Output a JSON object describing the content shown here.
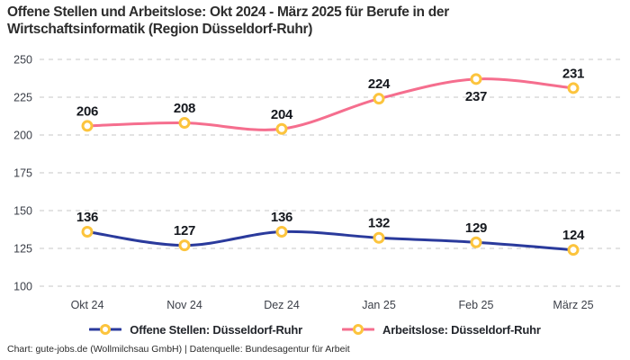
{
  "title": "Offene Stellen und Arbeitslose: Okt 2024 - März 2025 für Berufe in der Wirtschaftsinformatik (Region Düsseldorf-Ruhr)",
  "footer": "Chart: gute-jobs.de (Wollmilchsau GmbH) | Datenquelle: Bundesagentur für Arbeit",
  "legend": {
    "items": [
      {
        "label": "Offene Stellen: Düsseldorf-Ruhr"
      },
      {
        "label": "Arbeitslose: Düsseldorf-Ruhr"
      }
    ]
  },
  "chart_data": {
    "type": "line",
    "categories": [
      "Okt 24",
      "Nov 24",
      "Dez 24",
      "Jan 25",
      "Feb 25",
      "März 25"
    ],
    "series": [
      {
        "id": "offene-stellen",
        "name": "Offene Stellen: Düsseldorf-Ruhr",
        "values": [
          136,
          127,
          136,
          132,
          129,
          124
        ],
        "color": "#2a3a9c",
        "label_below_indices": []
      },
      {
        "id": "arbeitslose",
        "name": "Arbeitslose: Düsseldorf-Ruhr",
        "values": [
          206,
          208,
          204,
          224,
          237,
          231
        ],
        "color": "#f56e8e",
        "label_below_indices": [
          4
        ]
      }
    ],
    "marker": {
      "shape": "ring",
      "fill": "#ffffff",
      "stroke": "#fcc43d"
    },
    "ylim": [
      100,
      250
    ],
    "yticks": [
      100,
      125,
      150,
      175,
      200,
      225,
      250
    ],
    "grid": "horizontal-dashed",
    "grid_color": "#c7c7c7",
    "tick_label_color": "#3b3f48",
    "value_label_color": "#15181e",
    "legend_position": "bottom-center",
    "xlabel": "",
    "ylabel": ""
  }
}
